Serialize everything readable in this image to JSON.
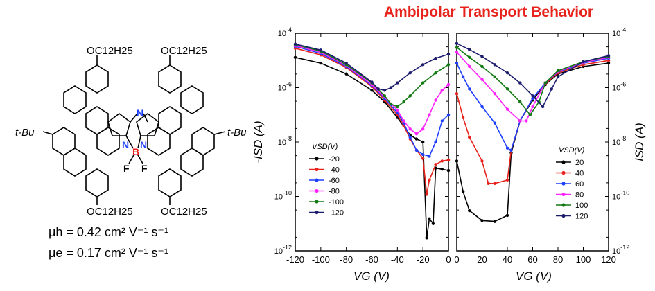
{
  "title": "Ambipolar Transport Behavior",
  "molecule": {
    "substituent_top_left": "OC12H25",
    "substituent_top_right": "OC12H25",
    "substituent_bottom_left": "OC12H25",
    "substituent_bottom_right": "OC12H25",
    "tbu_left": "t-Bu",
    "tbu_right": "t-Bu",
    "atom_N_bridge": "N",
    "atom_N_left": "N",
    "atom_N_right": "N",
    "atom_B": "B",
    "atom_F1": "F",
    "atom_F2": "F"
  },
  "mobility": {
    "hole": "μh = 0.42 cm² V⁻¹ s⁻¹",
    "electron": "μe = 0.17 cm² V⁻¹ s⁻¹"
  },
  "colors": {
    "title": "#e8231c",
    "series": [
      "#000000",
      "#e8231c",
      "#1f3fff",
      "#ff22ff",
      "#137a13",
      "#1c1c6e"
    ]
  },
  "chart_data": [
    {
      "type": "line",
      "xlabel": "VG (V)",
      "ylabel": "-ISD (A)",
      "y_scale": "log",
      "xlim": [
        -120,
        0
      ],
      "ylim": [
        1e-12,
        0.0001
      ],
      "x_ticks": [
        "-120",
        "-100",
        "-80",
        "-60",
        "-40",
        "-20",
        "0"
      ],
      "y_ticks": [
        "10-4",
        "10-6",
        "10-8",
        "10-10",
        "10-12"
      ],
      "legend_title": "VSD(V)",
      "legend_position": "lower-left",
      "series": [
        {
          "name": "-20",
          "x": [
            -120,
            -100,
            -80,
            -60,
            -50,
            -40,
            -30,
            -25,
            -20,
            -17,
            -15,
            -12,
            -10,
            -5,
            0
          ],
          "y": [
            1.3e-05,
            8e-06,
            3.2e-06,
            8e-07,
            3e-07,
            8e-08,
            1.8e-08,
            1.3e-08,
            1e-08,
            3e-12,
            1.5e-11,
            1e-11,
            1.1e-09,
            1e-09,
            9e-10
          ]
        },
        {
          "name": "-40",
          "x": [
            -120,
            -100,
            -80,
            -60,
            -50,
            -40,
            -35,
            -30,
            -25,
            -20,
            -17,
            -15,
            -10,
            -5,
            0
          ],
          "y": [
            2.8e-05,
            1.6e-05,
            5.5e-06,
            1.1e-06,
            3.5e-07,
            1e-07,
            4e-08,
            1.3e-08,
            5e-09,
            2.5e-09,
            1.2e-10,
            4e-10,
            1.5e-09,
            2e-09,
            2.2e-09
          ]
        },
        {
          "name": "-60",
          "x": [
            -120,
            -100,
            -80,
            -60,
            -50,
            -40,
            -35,
            -30,
            -25,
            -20,
            -15,
            -10,
            -5,
            0
          ],
          "y": [
            3.3e-05,
            1.8e-05,
            6e-06,
            1.2e-06,
            4e-07,
            1.2e-07,
            5e-08,
            1.5e-08,
            5e-09,
            3.5e-09,
            3e-09,
            1e-08,
            6e-08,
            1e-07
          ]
        },
        {
          "name": "-80",
          "x": [
            -120,
            -100,
            -80,
            -60,
            -50,
            -40,
            -35,
            -30,
            -25,
            -20,
            -15,
            -10,
            -5,
            0
          ],
          "y": [
            3.5e-05,
            2e-05,
            6.5e-06,
            1.3e-06,
            4.5e-07,
            1.5e-07,
            6e-08,
            3e-08,
            2e-08,
            3e-08,
            1e-07,
            3.5e-07,
            8e-07,
            1.3e-06
          ]
        },
        {
          "name": "-100",
          "x": [
            -120,
            -100,
            -80,
            -60,
            -50,
            -45,
            -40,
            -35,
            -30,
            -20,
            -10,
            0
          ],
          "y": [
            3.8e-05,
            2.2e-05,
            7e-06,
            1.5e-06,
            5e-07,
            2.5e-07,
            2e-07,
            3e-07,
            5e-07,
            1.5e-06,
            3.5e-06,
            7e-06
          ]
        },
        {
          "name": "-120",
          "x": [
            -120,
            -100,
            -80,
            -60,
            -55,
            -50,
            -45,
            -40,
            -30,
            -20,
            -10,
            0
          ],
          "y": [
            4e-05,
            2.4e-05,
            8e-06,
            1.6e-06,
            9e-07,
            8e-07,
            1e-06,
            1.5e-06,
            3.5e-06,
            7e-06,
            1.2e-05,
            1.7e-05
          ]
        }
      ]
    },
    {
      "type": "line",
      "xlabel": "VG (V)",
      "ylabel": "ISD (A)",
      "y_scale": "log",
      "xlim": [
        0,
        120
      ],
      "ylim": [
        1e-12,
        0.0001
      ],
      "x_ticks": [
        "0",
        "20",
        "40",
        "60",
        "80",
        "100",
        "120"
      ],
      "y_ticks": [
        "10-4",
        "10-6",
        "10-8",
        "10-10",
        "10-12"
      ],
      "legend_title": "VSD(V)",
      "legend_position": "lower-right",
      "series": [
        {
          "name": "20",
          "x": [
            0,
            5,
            10,
            20,
            30,
            40,
            43,
            50,
            60,
            70,
            80,
            100,
            120
          ],
          "y": [
            2e-09,
            1.5e-10,
            3e-11,
            1.3e-11,
            1.2e-11,
            2e-11,
            4e-09,
            6e-08,
            3.5e-07,
            1.3e-06,
            3.2e-06,
            6e-06,
            8e-06
          ]
        },
        {
          "name": "40",
          "x": [
            0,
            5,
            10,
            20,
            25,
            30,
            40,
            43,
            50,
            60,
            70,
            80,
            100,
            120
          ],
          "y": [
            6e-07,
            8e-08,
            1.5e-08,
            2e-09,
            3e-10,
            3e-10,
            4e-10,
            5e-09,
            6e-08,
            4e-07,
            1.4e-06,
            3.5e-06,
            7e-06,
            1e-05
          ]
        },
        {
          "name": "60",
          "x": [
            0,
            5,
            10,
            20,
            30,
            40,
            43,
            50,
            60,
            70,
            80,
            100,
            120
          ],
          "y": [
            8e-06,
            2.5e-06,
            9e-07,
            2e-07,
            5e-08,
            6e-09,
            5e-09,
            6e-08,
            4e-07,
            1.5e-06,
            3.8e-06,
            8e-06,
            1.2e-05
          ]
        },
        {
          "name": "80",
          "x": [
            0,
            10,
            20,
            30,
            40,
            50,
            55,
            60,
            70,
            80,
            100,
            120
          ],
          "y": [
            2e-05,
            6e-06,
            2e-06,
            6e-07,
            1.6e-07,
            6e-08,
            6e-08,
            2e-07,
            1.5e-06,
            4e-06,
            8.5e-06,
            1.3e-05
          ]
        },
        {
          "name": "100",
          "x": [
            0,
            10,
            20,
            30,
            40,
            50,
            58,
            65,
            70,
            80,
            100,
            120
          ],
          "y": [
            3e-05,
            1.3e-05,
            6e-06,
            2.5e-06,
            9e-07,
            3e-07,
            1e-07,
            3e-07,
            1.5e-06,
            4.2e-06,
            9e-06,
            1.4e-05
          ]
        },
        {
          "name": "120",
          "x": [
            0,
            10,
            20,
            30,
            40,
            50,
            60,
            68,
            75,
            80,
            100,
            120
          ],
          "y": [
            4.2e-05,
            2.5e-05,
            1.4e-05,
            7e-06,
            3.5e-06,
            1.5e-06,
            5e-07,
            2e-07,
            9e-07,
            2.5e-06,
            9e-06,
            1.5e-05
          ]
        }
      ]
    }
  ]
}
